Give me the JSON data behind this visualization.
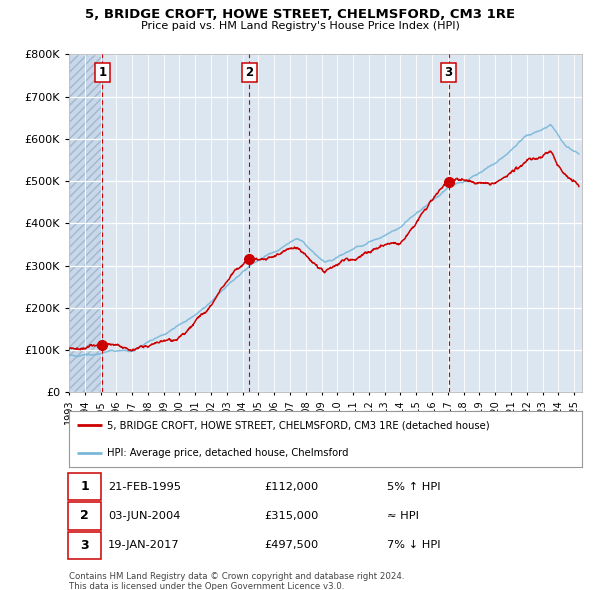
{
  "title_line1": "5, BRIDGE CROFT, HOWE STREET, CHELMSFORD, CM3 1RE",
  "title_line2": "Price paid vs. HM Land Registry's House Price Index (HPI)",
  "background_color": "#dce6f1",
  "plot_bg_color": "#dce6f1",
  "grid_color": "#ffffff",
  "red_line_color": "#cc0000",
  "blue_line_color": "#7ab8d9",
  "marker_color": "#cc0000",
  "vline_color": "#cc0000",
  "ylim": [
    0,
    800000
  ],
  "xlim_start": 1993.0,
  "xlim_end": 2025.5,
  "hatch_end": 1995.12,
  "purchases": [
    {
      "label": "1",
      "date": 1995.12,
      "price": 112000,
      "text_date": "21-FEB-1995",
      "text_price": "£112,000",
      "text_hpi": "5% ↑ HPI"
    },
    {
      "label": "2",
      "date": 2004.42,
      "price": 315000,
      "text_date": "03-JUN-2004",
      "text_price": "£315,000",
      "text_hpi": "≈ HPI"
    },
    {
      "label": "3",
      "date": 2017.05,
      "price": 497500,
      "text_date": "19-JAN-2017",
      "text_price": "£497,500",
      "text_hpi": "7% ↓ HPI"
    }
  ],
  "legend_red": "5, BRIDGE CROFT, HOWE STREET, CHELMSFORD, CM3 1RE (detached house)",
  "legend_blue": "HPI: Average price, detached house, Chelmsford",
  "footer_line1": "Contains HM Land Registry data © Crown copyright and database right 2024.",
  "footer_line2": "This data is licensed under the Open Government Licence v3.0."
}
